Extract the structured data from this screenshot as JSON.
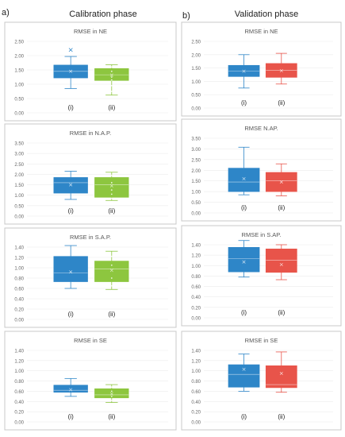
{
  "figure": {
    "left_label": "a)",
    "right_label": "b)",
    "left_title": "Calibration phase",
    "right_title": "Validation phase"
  },
  "colors": {
    "box_i": "#2E86C8",
    "box_ii": "#8DC63F",
    "box_red": "#E8544A",
    "whisker": "#7F9FC4"
  },
  "chart_data": [
    {
      "type": "box",
      "phase": "Calibration phase",
      "title": "RMSE in NE",
      "ylim": [
        0,
        2.5
      ],
      "yticks": [
        "0.00",
        "0.50",
        "1.00",
        "1.50",
        "2.00",
        "2.50"
      ],
      "categories": [
        "(i)",
        "(ii)"
      ],
      "boxes": [
        {
          "category": "(i)",
          "color": "blue",
          "min": 0.85,
          "q1": 1.22,
          "median": 1.45,
          "q3": 1.67,
          "max": 1.97,
          "mean": 1.45,
          "outlier": 2.2
        },
        {
          "category": "(ii)",
          "color": "green",
          "min": 0.62,
          "q1": 1.13,
          "median": 1.33,
          "q3": 1.55,
          "max": 1.68,
          "mean": 1.32,
          "points": [
            0.75,
            0.95,
            1.15,
            1.25,
            1.45,
            1.6
          ]
        }
      ]
    },
    {
      "type": "box",
      "phase": "Calibration phase",
      "title": "RMSE in N.A.P.",
      "ylim": [
        0,
        3.5
      ],
      "yticks": [
        "0.00",
        "0.50",
        "1.00",
        "1.50",
        "2.00",
        "2.50",
        "3.00",
        "3.50"
      ],
      "categories": [
        "(i)",
        "(ii)"
      ],
      "boxes": [
        {
          "category": "(i)",
          "color": "blue",
          "min": 0.8,
          "q1": 1.1,
          "median": 1.6,
          "q3": 1.85,
          "max": 2.15,
          "mean": 1.5
        },
        {
          "category": "(ii)",
          "color": "green",
          "min": 0.75,
          "q1": 0.9,
          "median": 1.5,
          "q3": 1.85,
          "max": 2.1,
          "mean": 1.45,
          "points": [
            0.85,
            1.05,
            1.25,
            1.6,
            1.95
          ]
        }
      ]
    },
    {
      "type": "box",
      "phase": "Calibration phase",
      "title": "RMSE in S.A.P.",
      "ylim": [
        0,
        1.4
      ],
      "yticks": [
        "0.00",
        "0.20",
        "0.40",
        "0.60",
        "0.80",
        "1.00",
        "1.20",
        "1.40"
      ],
      "categories": [
        "(i)",
        "(ii)"
      ],
      "boxes": [
        {
          "category": "(i)",
          "color": "blue",
          "min": 0.6,
          "q1": 0.73,
          "median": 0.9,
          "q3": 1.22,
          "max": 1.43,
          "mean": 0.92
        },
        {
          "category": "(ii)",
          "color": "green",
          "min": 0.58,
          "q1": 0.73,
          "median": 0.98,
          "q3": 1.13,
          "max": 1.32,
          "mean": 0.95,
          "points": [
            0.65,
            0.8,
            1.05,
            1.22
          ]
        }
      ]
    },
    {
      "type": "box",
      "phase": "Calibration phase",
      "title": "RMSE  in SE",
      "ylim": [
        0,
        1.4
      ],
      "yticks": [
        "0.00",
        "0.20",
        "0.40",
        "0.60",
        "0.80",
        "1.00",
        "1.20",
        "1.40"
      ],
      "categories": [
        "(i)",
        "(ii)"
      ],
      "boxes": [
        {
          "category": "(i)",
          "color": "blue",
          "min": 0.5,
          "q1": 0.58,
          "median": 0.62,
          "q3": 0.72,
          "max": 0.85,
          "mean": 0.63
        },
        {
          "category": "(ii)",
          "color": "green",
          "min": 0.38,
          "q1": 0.47,
          "median": 0.53,
          "q3": 0.65,
          "max": 0.73,
          "mean": 0.55,
          "points": [
            0.42,
            0.5,
            0.6,
            0.68
          ]
        }
      ]
    },
    {
      "type": "box",
      "phase": "Validation phase",
      "title": "RMSE in NE",
      "ylim": [
        0,
        2.5
      ],
      "yticks": [
        "0.00",
        "0.50",
        "1.00",
        "1.50",
        "2.00",
        "2.50"
      ],
      "categories": [
        "(i)",
        "(ii)"
      ],
      "boxes": [
        {
          "category": "(i)",
          "color": "blue",
          "min": 0.75,
          "q1": 1.18,
          "median": 1.38,
          "q3": 1.6,
          "max": 2.0,
          "mean": 1.38
        },
        {
          "category": "(ii)",
          "color": "red",
          "min": 0.9,
          "q1": 1.15,
          "median": 1.42,
          "q3": 1.67,
          "max": 2.05,
          "mean": 1.4
        }
      ]
    },
    {
      "type": "box",
      "phase": "Validation phase",
      "title": "RMSE N.AP.",
      "ylim": [
        0,
        3.5
      ],
      "yticks": [
        "0.00",
        "0.50",
        "1.00",
        "1.50",
        "2.00",
        "2.50",
        "3.00",
        "3.50"
      ],
      "categories": [
        "(i)",
        "(ii)"
      ],
      "boxes": [
        {
          "category": "(i)",
          "color": "blue",
          "min": 0.85,
          "q1": 1.0,
          "median": 1.45,
          "q3": 2.1,
          "max": 3.08,
          "mean": 1.6
        },
        {
          "category": "(ii)",
          "color": "red",
          "min": 0.8,
          "q1": 1.0,
          "median": 1.5,
          "q3": 1.9,
          "max": 2.3,
          "mean": 1.45
        }
      ]
    },
    {
      "type": "box",
      "phase": "Validation phase",
      "title": "RMSE in S.AP.",
      "ylim": [
        0,
        1.4
      ],
      "yticks": [
        "0.00",
        "0.20",
        "0.40",
        "0.60",
        "0.80",
        "1.00",
        "1.20",
        "1.40"
      ],
      "categories": [
        "(i)",
        "(ii)"
      ],
      "boxes": [
        {
          "category": "(i)",
          "color": "blue",
          "min": 0.78,
          "q1": 0.88,
          "median": 1.13,
          "q3": 1.35,
          "max": 1.48,
          "mean": 1.07
        },
        {
          "category": "(ii)",
          "color": "red",
          "min": 0.73,
          "q1": 0.87,
          "median": 1.1,
          "q3": 1.32,
          "max": 1.4,
          "mean": 1.02
        }
      ]
    },
    {
      "type": "box",
      "phase": "Validation phase",
      "title": "RMSE in SE",
      "ylim": [
        0,
        1.4
      ],
      "yticks": [
        "0.00",
        "0.20",
        "0.40",
        "0.60",
        "0.80",
        "1.00",
        "1.20",
        "1.40"
      ],
      "categories": [
        "(i)",
        "(ii)"
      ],
      "boxes": [
        {
          "category": "(i)",
          "color": "blue",
          "min": 0.6,
          "q1": 0.68,
          "median": 0.93,
          "q3": 1.12,
          "max": 1.33,
          "mean": 1.03
        },
        {
          "category": "(ii)",
          "color": "red",
          "min": 0.58,
          "q1": 0.67,
          "median": 0.73,
          "q3": 1.1,
          "max": 1.37,
          "mean": 0.95
        }
      ]
    }
  ]
}
